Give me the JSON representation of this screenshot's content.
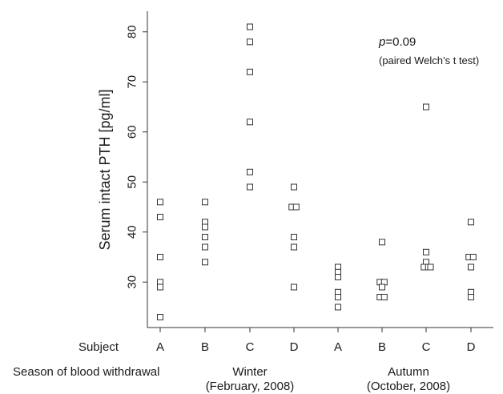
{
  "chart_data": {
    "type": "scatter",
    "ylabel": "Serum intact PTH [pg/ml]",
    "ylim": [
      20,
      85
    ],
    "yticks": [
      30,
      40,
      50,
      60,
      70,
      80
    ],
    "annotation": {
      "p_letter": "p",
      "p_value": "=0.09",
      "test": "(paired Welch’s t test)"
    },
    "row_labels": {
      "subject": "Subject",
      "season": "Season of blood withdrawal"
    },
    "seasons": [
      {
        "name": "Winter",
        "date": "(February, 2008)"
      },
      {
        "name": "Autumn",
        "date": "(October, 2008)"
      }
    ],
    "categories": [
      "A",
      "B",
      "C",
      "D",
      "A",
      "B",
      "C",
      "D"
    ],
    "groups": [
      {
        "season": "Winter",
        "subject": "A",
        "points": [
          [
            0,
            46
          ],
          [
            0,
            43
          ],
          [
            0,
            35
          ],
          [
            0,
            30
          ],
          [
            0,
            29
          ],
          [
            0,
            23
          ]
        ]
      },
      {
        "season": "Winter",
        "subject": "B",
        "points": [
          [
            0,
            46
          ],
          [
            0,
            42
          ],
          [
            0,
            41
          ],
          [
            0,
            39
          ],
          [
            0,
            37
          ],
          [
            0,
            34
          ]
        ]
      },
      {
        "season": "Winter",
        "subject": "C",
        "points": [
          [
            0,
            81
          ],
          [
            0,
            78
          ],
          [
            0,
            72
          ],
          [
            0,
            62
          ],
          [
            0,
            52
          ],
          [
            0,
            49
          ]
        ]
      },
      {
        "season": "Winter",
        "subject": "D",
        "points": [
          [
            0,
            49
          ],
          [
            -0.05,
            45
          ],
          [
            0.05,
            45
          ],
          [
            0,
            39
          ],
          [
            0,
            37
          ],
          [
            0,
            29
          ]
        ]
      },
      {
        "season": "Autumn",
        "subject": "A",
        "points": [
          [
            0,
            33
          ],
          [
            0,
            32
          ],
          [
            0,
            31
          ],
          [
            0,
            28
          ],
          [
            0,
            27
          ],
          [
            0,
            25
          ]
        ]
      },
      {
        "season": "Autumn",
        "subject": "B",
        "points": [
          [
            0,
            38
          ],
          [
            -0.05,
            30
          ],
          [
            0.05,
            30
          ],
          [
            0,
            29
          ],
          [
            -0.05,
            27
          ],
          [
            0.05,
            27
          ]
        ]
      },
      {
        "season": "Autumn",
        "subject": "C",
        "points": [
          [
            0,
            65
          ],
          [
            0,
            36
          ],
          [
            0,
            34
          ],
          [
            -0.05,
            33
          ],
          [
            0.05,
            33
          ],
          [
            0.1,
            33
          ]
        ]
      },
      {
        "season": "Autumn",
        "subject": "D",
        "points": [
          [
            0,
            42
          ],
          [
            -0.05,
            35
          ],
          [
            0.05,
            35
          ],
          [
            0,
            33
          ],
          [
            0,
            28
          ],
          [
            0,
            27
          ]
        ]
      }
    ]
  }
}
